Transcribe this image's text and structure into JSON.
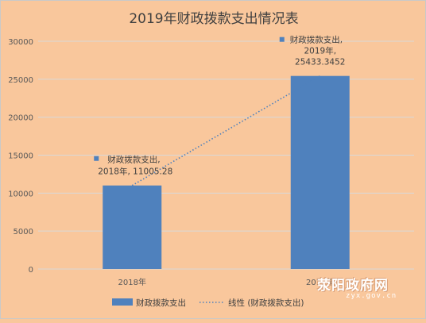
{
  "chart_data": {
    "type": "bar",
    "title": "2019年财政拨款支出情况表",
    "categories": [
      "2018年",
      "2019年"
    ],
    "series": [
      {
        "name": "财政拨款支出",
        "values": [
          11005.28,
          25433.3452
        ]
      }
    ],
    "trendline": {
      "name": "线性 (财政拨款支出)",
      "style": "dotted"
    },
    "data_labels": [
      {
        "series": "财政拨款支出,",
        "category": "2018年, 11005.28"
      },
      {
        "series": "财政拨款支出,",
        "category": "2019年,",
        "value": "25433.3452"
      }
    ],
    "ylim": [
      0,
      30000
    ],
    "yticks": [
      "0",
      "5000",
      "10000",
      "15000",
      "20000",
      "25000",
      "30000"
    ],
    "grid": true,
    "legend_position": "bottom",
    "colors": {
      "bar": "#4f81bd",
      "background": "#f9c79c",
      "grid": "#d9d9d9",
      "trend": "#4f81bd"
    }
  },
  "watermark": {
    "main": "荥阳政府网",
    "sub": "zyx.gov.cn"
  }
}
